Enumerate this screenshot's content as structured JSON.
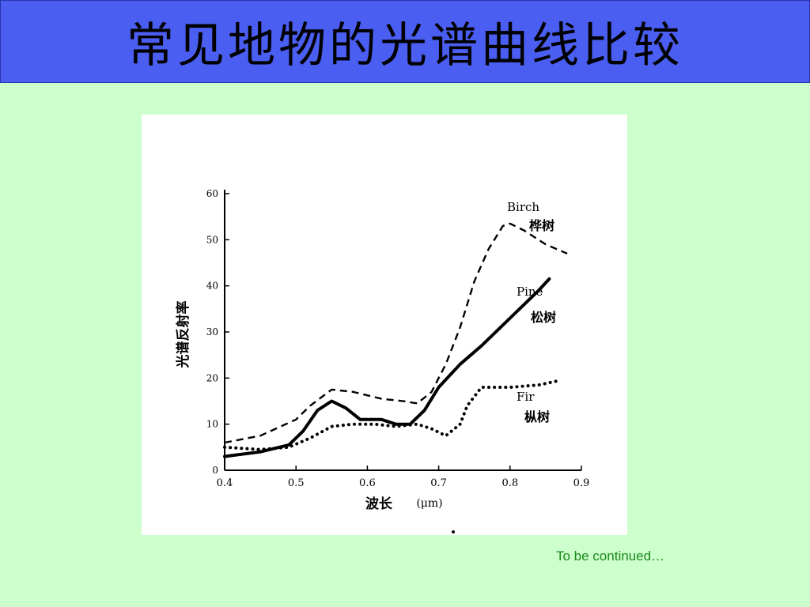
{
  "slide": {
    "title": "常见地物的光谱曲线比较",
    "footer": "To be continued…"
  },
  "colors": {
    "title_bg": "#4b5ef2",
    "page_bg": "#ccffcc",
    "footer": "#1a8a1a"
  },
  "chart_data": {
    "type": "line",
    "xlabel": "波长",
    "xunit": "(μm)",
    "ylabel": "光谱反射率",
    "x_ticks": [
      "0.4",
      "0.5",
      "0.6",
      "0.7",
      "0.8",
      "0.9"
    ],
    "y_ticks": [
      "0",
      "10",
      "20",
      "30",
      "40",
      "50",
      "60"
    ],
    "xlim": [
      0.4,
      0.9
    ],
    "ylim": [
      0,
      60
    ],
    "grid": false,
    "series": [
      {
        "name": "Birch",
        "label_cn": "桦树",
        "style": "dashed",
        "points": [
          [
            0.4,
            6
          ],
          [
            0.45,
            7.5
          ],
          [
            0.5,
            11
          ],
          [
            0.52,
            14
          ],
          [
            0.55,
            17.5
          ],
          [
            0.58,
            17
          ],
          [
            0.62,
            15.5
          ],
          [
            0.65,
            15
          ],
          [
            0.67,
            14.5
          ],
          [
            0.69,
            17
          ],
          [
            0.71,
            23
          ],
          [
            0.73,
            31
          ],
          [
            0.75,
            41
          ],
          [
            0.77,
            48
          ],
          [
            0.79,
            53
          ],
          [
            0.8,
            53.5
          ],
          [
            0.82,
            52
          ],
          [
            0.85,
            49
          ],
          [
            0.88,
            47
          ]
        ]
      },
      {
        "name": "Pine",
        "label_cn": "松树",
        "style": "solid",
        "points": [
          [
            0.4,
            3
          ],
          [
            0.45,
            4
          ],
          [
            0.49,
            5.5
          ],
          [
            0.51,
            8.5
          ],
          [
            0.53,
            13
          ],
          [
            0.55,
            15
          ],
          [
            0.57,
            13.5
          ],
          [
            0.59,
            11
          ],
          [
            0.62,
            11
          ],
          [
            0.64,
            10
          ],
          [
            0.66,
            10
          ],
          [
            0.68,
            13
          ],
          [
            0.7,
            18
          ],
          [
            0.73,
            23
          ],
          [
            0.76,
            27
          ],
          [
            0.8,
            33
          ],
          [
            0.84,
            39
          ],
          [
            0.855,
            41.5
          ]
        ]
      },
      {
        "name": "Fir",
        "label_cn": "枞树",
        "style": "dotted",
        "points": [
          [
            0.4,
            5
          ],
          [
            0.45,
            4.5
          ],
          [
            0.49,
            5
          ],
          [
            0.52,
            7
          ],
          [
            0.55,
            9.5
          ],
          [
            0.58,
            10
          ],
          [
            0.61,
            10
          ],
          [
            0.64,
            9.5
          ],
          [
            0.67,
            10
          ],
          [
            0.69,
            9
          ],
          [
            0.71,
            7.5
          ],
          [
            0.73,
            10
          ],
          [
            0.74,
            14
          ],
          [
            0.76,
            18
          ],
          [
            0.8,
            18
          ],
          [
            0.84,
            18.5
          ],
          [
            0.87,
            19.5
          ]
        ]
      }
    ]
  }
}
